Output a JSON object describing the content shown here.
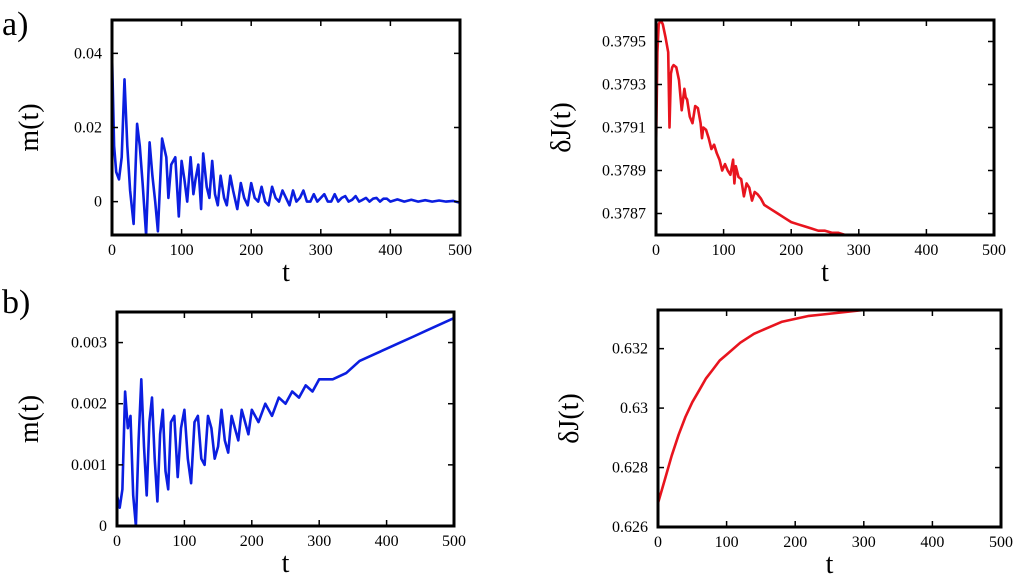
{
  "labels": {
    "row_a": "a)",
    "row_b": "b)"
  },
  "chart_data": [
    {
      "id": "a-left",
      "type": "line",
      "xlabel": "t",
      "ylabel": "m(t)",
      "xlim": [
        0,
        500
      ],
      "ylim": [
        -0.009,
        0.049
      ],
      "xticks": [
        0,
        100,
        200,
        300,
        400,
        500
      ],
      "xtick_labels": [
        "0",
        "100",
        "200",
        "300",
        "400",
        "500"
      ],
      "yticks": [
        0,
        0.02,
        0.04
      ],
      "ytick_labels": [
        "0",
        "0.02",
        "0.04"
      ],
      "color": "#0b1ee0",
      "series": [
        {
          "x": [
            0,
            3,
            6,
            10,
            14,
            18,
            22,
            26,
            31,
            36,
            40,
            44,
            49,
            54,
            58,
            62,
            66,
            72,
            78,
            81,
            85,
            91,
            96,
            100,
            104,
            108,
            113,
            117,
            120,
            124,
            128,
            131,
            136,
            140,
            144,
            148,
            152,
            156,
            161,
            165,
            170,
            174,
            180,
            185,
            190,
            195,
            200,
            205,
            210,
            215,
            220,
            225,
            230,
            235,
            240,
            245,
            250,
            255,
            260,
            265,
            270,
            275,
            280,
            285,
            290,
            295,
            300,
            305,
            310,
            315,
            320,
            325,
            330,
            335,
            340,
            345,
            350,
            355,
            360,
            365,
            370,
            375,
            380,
            385,
            390,
            395,
            400,
            410,
            420,
            430,
            440,
            450,
            460,
            470,
            480,
            490,
            500
          ],
          "y": [
            0.04,
            0.015,
            0.008,
            0.006,
            0.012,
            0.033,
            0.015,
            0.003,
            -0.006,
            0.021,
            0.015,
            0.005,
            -0.009,
            0.016,
            0.007,
            0.0,
            -0.008,
            0.017,
            0.012,
            0.001,
            0.01,
            0.012,
            -0.004,
            0.011,
            0.006,
            0.0,
            0.012,
            0.002,
            0.006,
            0.01,
            -0.002,
            0.013,
            0.004,
            0.001,
            0.011,
            0.002,
            -0.001,
            0.007,
            0.001,
            -0.001,
            0.007,
            0.003,
            -0.002,
            0.005,
            0.001,
            -0.001,
            0.005,
            0.001,
            0.0,
            0.004,
            0.0,
            -0.001,
            0.004,
            0.001,
            0.0,
            0.003,
            0.001,
            -0.001,
            0.003,
            0.0,
            0.001,
            0.003,
            0.0,
            0.0,
            0.002,
            0.0,
            0.001,
            0.002,
            0.0,
            0.0,
            0.002,
            0.0,
            0.001,
            0.0015,
            0.0,
            0.0005,
            0.0015,
            0.0,
            0.0005,
            0.001,
            0.0,
            0.0008,
            0.001,
            0.0,
            0.0008,
            0.0008,
            0.0,
            0.0006,
            0.0,
            0.0005,
            0.0,
            0.0004,
            0.0,
            0.0003,
            0.0,
            0.0002,
            -0.0003
          ]
        }
      ]
    },
    {
      "id": "a-right",
      "type": "line",
      "xlabel": "t",
      "ylabel": "δJ(t)",
      "xlim": [
        0,
        500
      ],
      "ylim": [
        0.3786,
        0.3796
      ],
      "xticks": [
        0,
        100,
        200,
        300,
        400,
        500
      ],
      "xtick_labels": [
        "0",
        "100",
        "200",
        "300",
        "400",
        "500"
      ],
      "yticks": [
        0.3787,
        0.3789,
        0.3791,
        0.3793,
        0.3795
      ],
      "ytick_labels": [
        "0.3787",
        "0.3789",
        "0.3791",
        "0.3793",
        "0.3795"
      ],
      "color": "#e8141e",
      "series": [
        {
          "x": [
            0,
            2,
            4,
            7,
            10,
            14,
            18,
            20,
            22,
            24,
            26,
            30,
            34,
            38,
            42,
            44,
            46,
            50,
            54,
            58,
            62,
            66,
            68,
            70,
            74,
            78,
            82,
            86,
            90,
            94,
            98,
            102,
            106,
            110,
            114,
            116,
            118,
            122,
            126,
            130,
            134,
            138,
            142,
            146,
            150,
            155,
            160,
            170,
            180,
            190,
            200,
            210,
            220,
            230,
            240,
            250,
            260,
            270,
            280,
            290,
            300,
            320,
            340,
            360,
            380,
            400,
            420,
            440,
            460,
            480,
            500
          ],
          "y": [
            0.37898,
            0.37945,
            0.37958,
            0.3796,
            0.37958,
            0.37952,
            0.37945,
            0.3791,
            0.37935,
            0.37938,
            0.37939,
            0.37938,
            0.37932,
            0.37918,
            0.37928,
            0.37924,
            0.37923,
            0.37915,
            0.37912,
            0.3792,
            0.37919,
            0.37912,
            0.37905,
            0.3791,
            0.37909,
            0.37905,
            0.379,
            0.37902,
            0.37898,
            0.37895,
            0.3789,
            0.37893,
            0.3789,
            0.37888,
            0.37895,
            0.37884,
            0.37892,
            0.37887,
            0.37886,
            0.37878,
            0.37884,
            0.37882,
            0.37876,
            0.3788,
            0.37879,
            0.37877,
            0.37874,
            0.37872,
            0.3787,
            0.37868,
            0.37866,
            0.37865,
            0.37864,
            0.37863,
            0.37862,
            0.37862,
            0.37861,
            0.37861,
            0.3786,
            0.3786,
            0.3786,
            0.37859,
            0.37859,
            0.37859,
            0.37858,
            0.37858,
            0.37858,
            0.37858,
            0.37858,
            0.37858,
            0.37858
          ]
        }
      ]
    },
    {
      "id": "b-left",
      "type": "line",
      "xlabel": "t",
      "ylabel": "m(t)",
      "xlim": [
        0,
        500
      ],
      "ylim": [
        0,
        0.0035
      ],
      "xticks": [
        0,
        100,
        200,
        300,
        400,
        500
      ],
      "xtick_labels": [
        "0",
        "100",
        "200",
        "300",
        "400",
        "500"
      ],
      "yticks": [
        0,
        0.001,
        0.002,
        0.003
      ],
      "ytick_labels": [
        "0",
        "0.001",
        "0.002",
        "0.003"
      ],
      "color": "#0b1ee0",
      "series": [
        {
          "x": [
            0,
            4,
            8,
            12,
            16,
            20,
            24,
            28,
            32,
            36,
            40,
            44,
            48,
            52,
            56,
            60,
            64,
            68,
            72,
            76,
            80,
            85,
            90,
            95,
            100,
            105,
            110,
            115,
            120,
            125,
            130,
            135,
            140,
            145,
            150,
            155,
            160,
            165,
            170,
            175,
            180,
            185,
            190,
            195,
            200,
            210,
            220,
            230,
            240,
            250,
            260,
            270,
            280,
            290,
            300,
            320,
            340,
            360,
            380,
            400,
            420,
            440,
            460,
            480,
            500
          ],
          "y": [
            0.0005,
            0.0003,
            0.0006,
            0.0022,
            0.0016,
            0.0018,
            0.0005,
            0.0,
            0.0014,
            0.0024,
            0.0013,
            0.0005,
            0.0017,
            0.0021,
            0.0011,
            0.0004,
            0.0015,
            0.0019,
            0.0009,
            0.0006,
            0.0017,
            0.0018,
            0.0008,
            0.0016,
            0.0019,
            0.0011,
            0.0007,
            0.0017,
            0.0018,
            0.0011,
            0.001,
            0.0018,
            0.0016,
            0.0011,
            0.0013,
            0.0019,
            0.0014,
            0.0012,
            0.0018,
            0.0016,
            0.0014,
            0.0019,
            0.0017,
            0.0015,
            0.0019,
            0.0017,
            0.002,
            0.0018,
            0.0021,
            0.002,
            0.0022,
            0.0021,
            0.0023,
            0.0022,
            0.0024,
            0.0024,
            0.0025,
            0.0027,
            0.0028,
            0.0029,
            0.003,
            0.0031,
            0.0032,
            0.0033,
            0.0034
          ]
        }
      ]
    },
    {
      "id": "b-right",
      "type": "line",
      "xlabel": "t",
      "ylabel": "δJ(t)",
      "xlim": [
        0,
        500
      ],
      "ylim": [
        0.626,
        0.6333
      ],
      "xticks": [
        0,
        100,
        200,
        300,
        400,
        500
      ],
      "xtick_labels": [
        "0",
        "100",
        "200",
        "300",
        "400",
        "500"
      ],
      "yticks": [
        0.626,
        0.628,
        0.63,
        0.632
      ],
      "ytick_labels": [
        "0.626",
        "0.628",
        "0.63",
        "0.632"
      ],
      "color": "#e8141e",
      "series": [
        {
          "x": [
            0,
            10,
            20,
            30,
            40,
            50,
            60,
            70,
            80,
            90,
            100,
            120,
            140,
            160,
            180,
            200,
            220,
            240,
            260,
            280,
            300,
            330,
            360,
            390,
            420,
            450,
            480,
            500
          ],
          "y": [
            0.6268,
            0.6276,
            0.6284,
            0.6291,
            0.6297,
            0.6302,
            0.6306,
            0.631,
            0.6313,
            0.6316,
            0.6318,
            0.6322,
            0.6325,
            0.6327,
            0.6329,
            0.633,
            0.6331,
            0.63315,
            0.6332,
            0.63325,
            0.6333,
            0.63333,
            0.63336,
            0.63338,
            0.6334,
            0.63341,
            0.63342,
            0.63343
          ]
        }
      ]
    }
  ]
}
